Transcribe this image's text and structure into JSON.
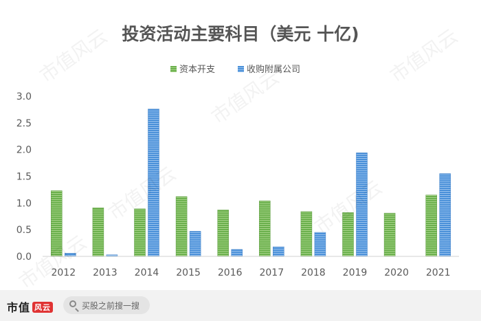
{
  "chart_data": {
    "type": "bar",
    "title": "投资活动主要科目（美元 十亿)",
    "categories": [
      "2012",
      "2013",
      "2014",
      "2015",
      "2016",
      "2017",
      "2018",
      "2019",
      "2020",
      "2021"
    ],
    "series": [
      {
        "name": "资本开支",
        "color": "#6ab04c",
        "values": [
          1.23,
          0.91,
          0.89,
          1.12,
          0.87,
          1.04,
          0.84,
          0.82,
          0.81,
          1.15
        ]
      },
      {
        "name": "收购附属公司",
        "color": "#4a90d9",
        "values": [
          0.06,
          0.03,
          2.76,
          0.47,
          0.13,
          0.18,
          0.45,
          1.94,
          0.0,
          1.55
        ]
      }
    ],
    "ylim": [
      0,
      3.0
    ],
    "yticks": [
      "0.0",
      "0.5",
      "1.0",
      "1.5",
      "2.0",
      "2.5",
      "3.0"
    ],
    "legend_position": "top-center",
    "grid": false
  },
  "watermark": "市值风云",
  "footer": {
    "brand": "市值",
    "brand_mark": "风云",
    "search_placeholder": "买股之前搜一搜"
  }
}
